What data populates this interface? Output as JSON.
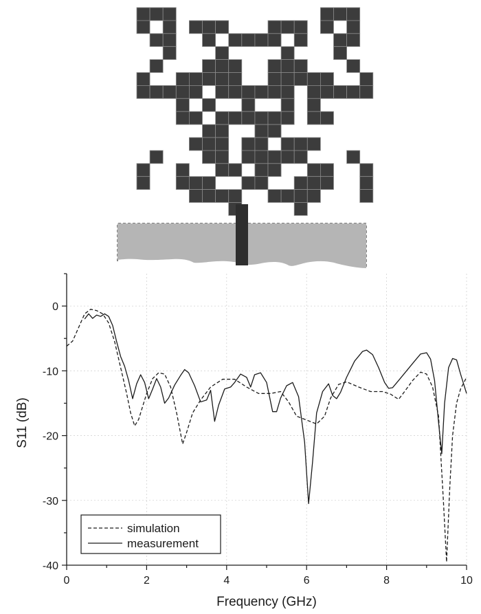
{
  "figure": {
    "antenna_fill": "#3c3c3c",
    "pixel_line": "#8a8a8a",
    "ground_fill": "#b5b5b5",
    "feed_fill": "#2e2e2e"
  },
  "chart_data": {
    "type": "line",
    "xlabel": "Frequency (GHz)",
    "ylabel": "S11 (dB)",
    "xlim": [
      0,
      10
    ],
    "ylim": [
      -40,
      5
    ],
    "x_ticks": [
      0,
      2,
      4,
      6,
      8,
      10
    ],
    "y_ticks": [
      0,
      -10,
      -20,
      -30,
      -40
    ],
    "grid": true,
    "legend": "bottom-left",
    "series": [
      {
        "name": "simulation",
        "style": "dashed",
        "color": "#1a1a1a",
        "points": [
          [
            0,
            -6.2
          ],
          [
            0.15,
            -5.4
          ],
          [
            0.3,
            -3.3
          ],
          [
            0.45,
            -1.2
          ],
          [
            0.6,
            -0.5
          ],
          [
            0.75,
            -0.7
          ],
          [
            0.9,
            -1.2
          ],
          [
            1.05,
            -2.6
          ],
          [
            1.2,
            -5.5
          ],
          [
            1.35,
            -9.5
          ],
          [
            1.5,
            -13.5
          ],
          [
            1.6,
            -16.5
          ],
          [
            1.7,
            -18.5
          ],
          [
            1.8,
            -17.5
          ],
          [
            1.9,
            -15.5
          ],
          [
            2.0,
            -13.5
          ],
          [
            2.15,
            -11.2
          ],
          [
            2.3,
            -10.3
          ],
          [
            2.45,
            -10.5
          ],
          [
            2.6,
            -12.5
          ],
          [
            2.75,
            -16.5
          ],
          [
            2.9,
            -21.3
          ],
          [
            3.0,
            -19.5
          ],
          [
            3.15,
            -16.5
          ],
          [
            3.35,
            -14.5
          ],
          [
            3.6,
            -12.5
          ],
          [
            3.9,
            -11.3
          ],
          [
            4.2,
            -11.3
          ],
          [
            4.5,
            -12.5
          ],
          [
            4.8,
            -13.5
          ],
          [
            5.1,
            -13.5
          ],
          [
            5.35,
            -13.2
          ],
          [
            5.55,
            -14.8
          ],
          [
            5.75,
            -17.0
          ],
          [
            6.0,
            -17.6
          ],
          [
            6.25,
            -18.2
          ],
          [
            6.45,
            -17.0
          ],
          [
            6.6,
            -14.2
          ],
          [
            6.8,
            -12.1
          ],
          [
            7.0,
            -11.7
          ],
          [
            7.3,
            -12.5
          ],
          [
            7.6,
            -13.2
          ],
          [
            7.9,
            -13.2
          ],
          [
            8.1,
            -13.6
          ],
          [
            8.3,
            -14.4
          ],
          [
            8.45,
            -13.2
          ],
          [
            8.65,
            -11.5
          ],
          [
            8.85,
            -10.2
          ],
          [
            9.0,
            -10.5
          ],
          [
            9.15,
            -12.5
          ],
          [
            9.3,
            -17.0
          ],
          [
            9.42,
            -30.0
          ],
          [
            9.5,
            -39.5
          ],
          [
            9.58,
            -28.0
          ],
          [
            9.65,
            -20.0
          ],
          [
            9.75,
            -15.0
          ],
          [
            9.85,
            -12.8
          ],
          [
            10.0,
            -11.0
          ]
        ]
      },
      {
        "name": "measurement",
        "style": "solid",
        "color": "#1a1a1a",
        "points": [
          [
            0.45,
            -2.0
          ],
          [
            0.55,
            -1.2
          ],
          [
            0.65,
            -1.9
          ],
          [
            0.75,
            -1.4
          ],
          [
            0.85,
            -1.6
          ],
          [
            0.95,
            -1.2
          ],
          [
            1.05,
            -1.6
          ],
          [
            1.15,
            -3.0
          ],
          [
            1.25,
            -5.5
          ],
          [
            1.35,
            -7.8
          ],
          [
            1.45,
            -9.3
          ],
          [
            1.55,
            -11.5
          ],
          [
            1.65,
            -14.3
          ],
          [
            1.75,
            -12.0
          ],
          [
            1.85,
            -10.6
          ],
          [
            1.95,
            -11.8
          ],
          [
            2.05,
            -14.3
          ],
          [
            2.15,
            -12.8
          ],
          [
            2.25,
            -11.2
          ],
          [
            2.35,
            -12.5
          ],
          [
            2.45,
            -15.0
          ],
          [
            2.55,
            -14.2
          ],
          [
            2.7,
            -12.2
          ],
          [
            2.85,
            -10.7
          ],
          [
            2.95,
            -9.8
          ],
          [
            3.05,
            -10.3
          ],
          [
            3.2,
            -12.3
          ],
          [
            3.35,
            -14.8
          ],
          [
            3.5,
            -14.5
          ],
          [
            3.6,
            -13.0
          ],
          [
            3.7,
            -17.8
          ],
          [
            3.8,
            -15.3
          ],
          [
            3.95,
            -12.8
          ],
          [
            4.1,
            -12.5
          ],
          [
            4.2,
            -11.8
          ],
          [
            4.35,
            -10.5
          ],
          [
            4.5,
            -11.0
          ],
          [
            4.6,
            -12.5
          ],
          [
            4.7,
            -10.6
          ],
          [
            4.85,
            -10.3
          ],
          [
            5.0,
            -11.8
          ],
          [
            5.15,
            -16.3
          ],
          [
            5.25,
            -16.3
          ],
          [
            5.35,
            -14.2
          ],
          [
            5.5,
            -12.3
          ],
          [
            5.65,
            -11.8
          ],
          [
            5.8,
            -14.0
          ],
          [
            5.95,
            -21.0
          ],
          [
            6.05,
            -30.5
          ],
          [
            6.15,
            -24.0
          ],
          [
            6.25,
            -16.5
          ],
          [
            6.4,
            -13.2
          ],
          [
            6.55,
            -12.0
          ],
          [
            6.65,
            -13.8
          ],
          [
            6.75,
            -14.3
          ],
          [
            6.85,
            -13.3
          ],
          [
            7.0,
            -11.0
          ],
          [
            7.2,
            -8.5
          ],
          [
            7.4,
            -7.0
          ],
          [
            7.5,
            -6.8
          ],
          [
            7.65,
            -7.5
          ],
          [
            7.8,
            -9.5
          ],
          [
            7.95,
            -11.8
          ],
          [
            8.05,
            -12.7
          ],
          [
            8.15,
            -12.6
          ],
          [
            8.3,
            -11.5
          ],
          [
            8.5,
            -10.0
          ],
          [
            8.7,
            -8.5
          ],
          [
            8.85,
            -7.4
          ],
          [
            9.0,
            -7.2
          ],
          [
            9.1,
            -8.2
          ],
          [
            9.2,
            -11.5
          ],
          [
            9.3,
            -18.0
          ],
          [
            9.38,
            -22.8
          ],
          [
            9.45,
            -15.0
          ],
          [
            9.55,
            -9.5
          ],
          [
            9.65,
            -8.1
          ],
          [
            9.75,
            -8.3
          ],
          [
            9.85,
            -10.5
          ],
          [
            10.0,
            -13.5
          ]
        ]
      }
    ]
  }
}
